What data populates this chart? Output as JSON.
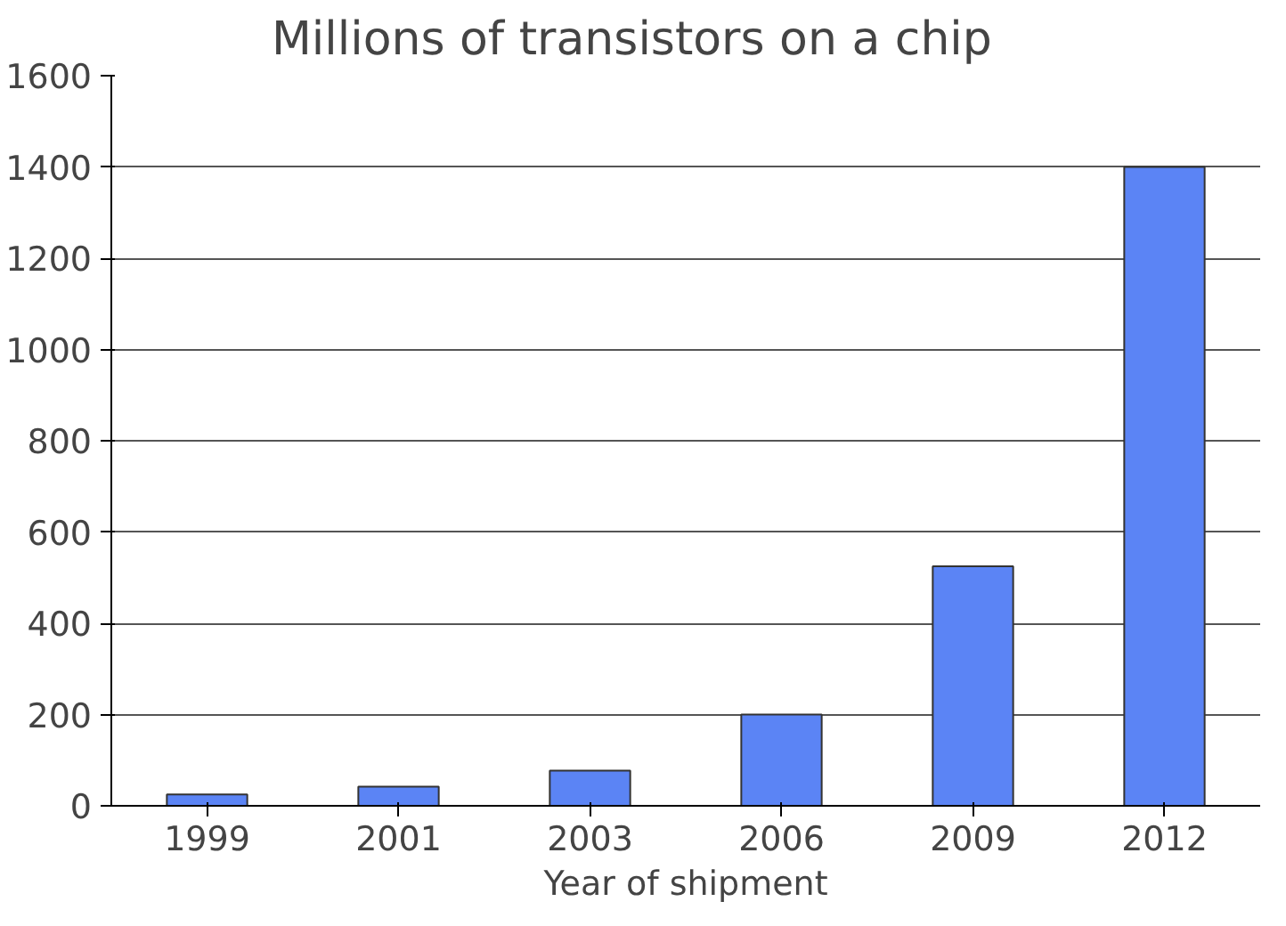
{
  "chart_data": {
    "type": "bar",
    "title": "Millions of transistors on a chip",
    "xlabel": "Year of shipment",
    "categories": [
      "1999",
      "2001",
      "2003",
      "2006",
      "2009",
      "2012"
    ],
    "values": [
      25,
      42,
      77,
      200,
      525,
      1400
    ],
    "color": "#5b84f5",
    "ylim": [
      0,
      1600
    ],
    "yticks": [
      0,
      200,
      400,
      600,
      800,
      1000,
      1200,
      1400,
      1600
    ],
    "grid": "y"
  }
}
